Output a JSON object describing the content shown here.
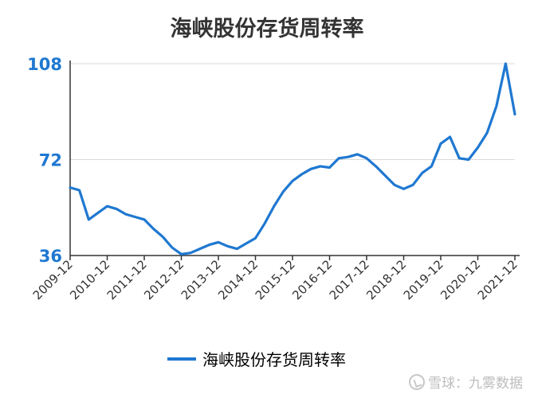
{
  "chart_data": {
    "type": "line",
    "title": "海峡股份存货周转率",
    "xlabel": "",
    "ylabel": "",
    "ylim": [
      36,
      108
    ],
    "yticks": [
      36,
      72,
      108
    ],
    "xlim": [
      2009.75,
      2021.75
    ],
    "xticks": [
      {
        "label": "2009-12",
        "x": 2009.75
      },
      {
        "label": "2010-12",
        "x": 2010.75
      },
      {
        "label": "2011-12",
        "x": 2011.75
      },
      {
        "label": "2012-12",
        "x": 2012.75
      },
      {
        "label": "2013-12",
        "x": 2013.75
      },
      {
        "label": "2014-12",
        "x": 2014.75
      },
      {
        "label": "2015-12",
        "x": 2015.75
      },
      {
        "label": "2016-12",
        "x": 2016.75
      },
      {
        "label": "2017-12",
        "x": 2017.75
      },
      {
        "label": "2018-12",
        "x": 2018.75
      },
      {
        "label": "2019-12",
        "x": 2019.75
      },
      {
        "label": "2020-12",
        "x": 2020.75
      },
      {
        "label": "2021-12",
        "x": 2021.75
      }
    ],
    "grid": true,
    "legend_position": "bottom",
    "colors": {
      "line": "#1f78d1",
      "axis_label": "#1f78d1",
      "grid": "#d9d9d9"
    },
    "series": [
      {
        "name": "海峡股份存货周转率",
        "x": [
          2009.75,
          2010.0,
          2010.25,
          2010.5,
          2010.75,
          2011.0,
          2011.25,
          2011.5,
          2011.75,
          2012.0,
          2012.25,
          2012.5,
          2012.75,
          2013.0,
          2013.25,
          2013.5,
          2013.75,
          2014.0,
          2014.25,
          2014.5,
          2014.75,
          2015.0,
          2015.25,
          2015.5,
          2015.75,
          2016.0,
          2016.25,
          2016.5,
          2016.75,
          2017.0,
          2017.25,
          2017.5,
          2017.75,
          2018.0,
          2018.25,
          2018.5,
          2018.75,
          2019.0,
          2019.25,
          2019.5,
          2019.75,
          2020.0,
          2020.25,
          2020.5,
          2020.75,
          2021.0,
          2021.25,
          2021.5,
          2021.75
        ],
        "values": [
          61.5,
          60.5,
          49.5,
          52,
          54.5,
          53.5,
          51.5,
          50.5,
          49.5,
          46,
          43,
          39,
          36.5,
          37,
          38.5,
          40,
          41,
          39.5,
          38.5,
          40.5,
          42.5,
          48,
          54.5,
          60,
          64,
          66.5,
          68.5,
          69.5,
          69,
          72.5,
          73,
          74,
          72.5,
          69.5,
          66,
          62.5,
          61,
          62.5,
          67,
          69.5,
          78,
          80.5,
          72.5,
          72,
          76.5,
          82,
          92,
          108,
          89
        ]
      }
    ]
  },
  "legend": {
    "label": "海峡股份存货周转率"
  },
  "watermark": {
    "text": "雪球：九雾数据"
  }
}
